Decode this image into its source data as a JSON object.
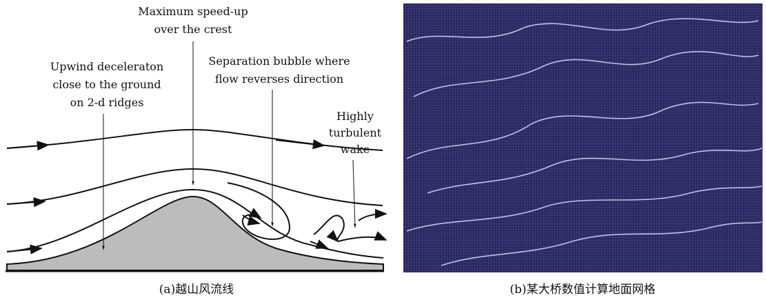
{
  "annotations": [
    {
      "lines": [
        "Maximum speed-up",
        "over the crest"
      ]
    },
    {
      "lines": [
        "Upwind deceleraton",
        "close to the ground",
        "on 2-d ridges"
      ]
    },
    {
      "lines": [
        "Separation bubble where",
        "flow reverses direction"
      ]
    },
    {
      "lines": [
        "Highly",
        "turbulent",
        "wake"
      ]
    }
  ],
  "captions": [
    "(a)越山风流线",
    "(b)某大桥数值计算地面网格"
  ]
}
